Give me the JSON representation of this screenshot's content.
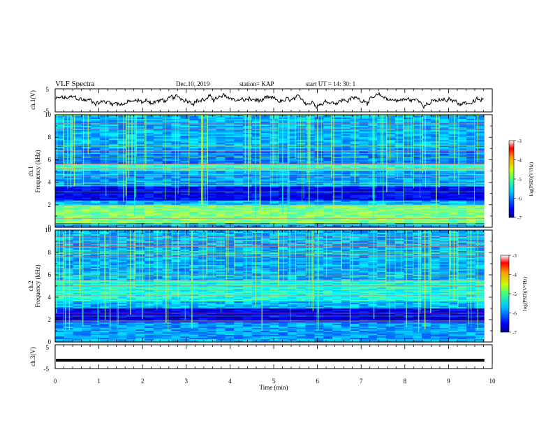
{
  "header": {
    "title": "VLF  Spectra",
    "date": "Dec.10, 2019",
    "station": "station= KAP",
    "start_ut": "start  UT =   14: 30: 1"
  },
  "chart_data": [
    {
      "type": "line",
      "name": "ch1-waveform",
      "ylabel": "ch.1(V)",
      "xlim": [
        0,
        10
      ],
      "ylim": [
        -5,
        5
      ],
      "yticks": [
        "5",
        "-5"
      ],
      "x_end": 9.82
    },
    {
      "type": "heatmap",
      "name": "ch1-spectrogram",
      "ylabel_line1": "ch.1",
      "ylabel_line2": "Frequency  (kHz)",
      "xlim": [
        0,
        10
      ],
      "ylim": [
        0,
        10
      ],
      "yticks": [
        "0",
        "2",
        "4",
        "6",
        "8",
        "10"
      ],
      "x_end": 9.82,
      "colorbar": {
        "label": "log(PSD)(V²/Hz)",
        "range": [
          -7,
          -3
        ],
        "ticks": [
          "-3",
          "-4",
          "-5",
          "-6",
          "-7"
        ]
      }
    },
    {
      "type": "heatmap",
      "name": "ch2-spectrogram",
      "ylabel_line1": "ch.2",
      "ylabel_line2": "Frequency  (kHz)",
      "xlim": [
        0,
        10
      ],
      "ylim": [
        0,
        10
      ],
      "yticks": [
        "0",
        "2",
        "4",
        "6",
        "8",
        "10"
      ],
      "x_end": 9.82,
      "colorbar": {
        "label": "log(PSD)(V²/Hz)",
        "range": [
          -7,
          -3
        ],
        "ticks": [
          "-3",
          "-4",
          "-5",
          "-6",
          "-7"
        ]
      }
    },
    {
      "type": "line",
      "name": "ch3-waveform",
      "ylabel": "ch.3(V)",
      "xlim": [
        0,
        10
      ],
      "ylim": [
        -5,
        5
      ],
      "yticks": [
        "5",
        "-5"
      ],
      "x_end": 9.82,
      "level": -1.5
    }
  ],
  "xaxis": {
    "label": "Time  (min)",
    "ticks": [
      "0",
      "1",
      "2",
      "3",
      "4",
      "5",
      "6",
      "7",
      "8",
      "9",
      "10"
    ]
  }
}
